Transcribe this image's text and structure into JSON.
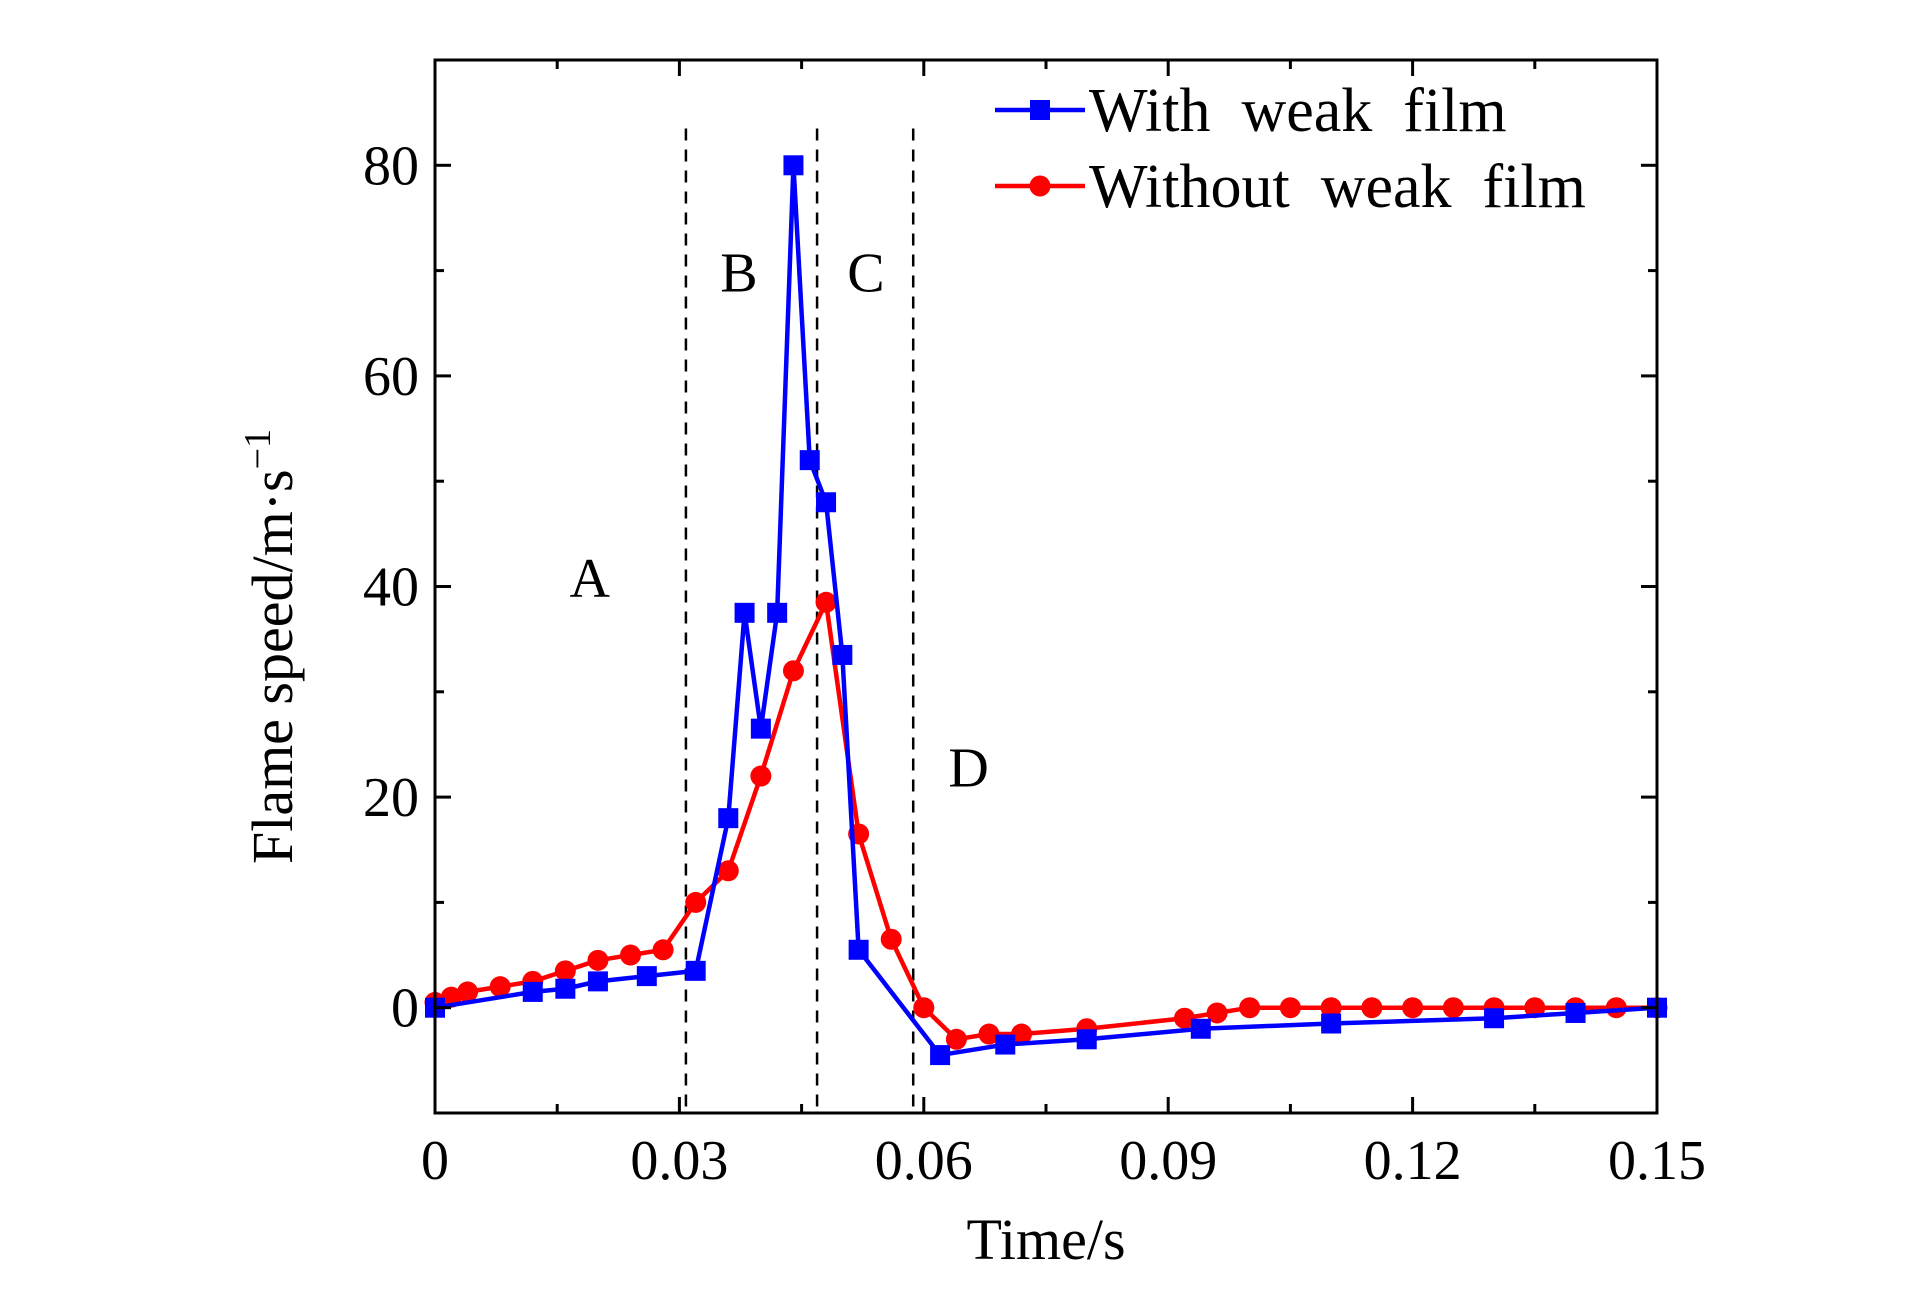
{
  "chart_data": {
    "type": "line",
    "title": "",
    "xlabel": "Time/s",
    "ylabel": "Flame speed/m·s",
    "ylabel_sup": "−1",
    "xlim": [
      0,
      0.15
    ],
    "ylim": [
      -10,
      90
    ],
    "xticks": [
      0,
      0.03,
      0.06,
      0.09,
      0.12,
      0.15
    ],
    "xtick_labels": [
      "0",
      "0.03",
      "0.06",
      "0.09",
      "0.12",
      "0.15"
    ],
    "yticks": [
      0,
      20,
      40,
      60,
      80
    ],
    "ytick_labels": [
      "0",
      "20",
      "40",
      "60",
      "80"
    ],
    "grid": false,
    "legend": "top-right",
    "regions": {
      "boundaries": [
        0.0308,
        0.0469,
        0.0587
      ],
      "labels": [
        {
          "text": "A",
          "x": 0.019,
          "y": 39
        },
        {
          "text": "B",
          "x": 0.0373,
          "y": 68
        },
        {
          "text": "C",
          "x": 0.0529,
          "y": 68
        },
        {
          "text": "D",
          "x": 0.0655,
          "y": 21
        }
      ]
    },
    "series": [
      {
        "name": "With  weak  film",
        "color": "#0000ff",
        "marker": "square",
        "x": [
          0,
          0.012,
          0.016,
          0.02,
          0.026,
          0.032,
          0.036,
          0.038,
          0.04,
          0.042,
          0.044,
          0.046,
          0.048,
          0.05,
          0.052,
          0.062,
          0.07,
          0.08,
          0.094,
          0.11,
          0.13,
          0.14,
          0.15
        ],
        "y": [
          0,
          1.5,
          1.8,
          2.5,
          3,
          3.5,
          18,
          37.5,
          26.5,
          37.5,
          80,
          52,
          48,
          33.5,
          5.5,
          -4.5,
          -3.5,
          -3,
          -2,
          -1.5,
          -1,
          -0.5,
          0
        ]
      },
      {
        "name": "Without  weak  film",
        "color": "#ff0000",
        "marker": "circle",
        "x": [
          0,
          0.002,
          0.004,
          0.008,
          0.012,
          0.016,
          0.02,
          0.024,
          0.028,
          0.032,
          0.036,
          0.04,
          0.044,
          0.048,
          0.052,
          0.056,
          0.06,
          0.064,
          0.068,
          0.072,
          0.08,
          0.092,
          0.096,
          0.1,
          0.105,
          0.11,
          0.115,
          0.12,
          0.125,
          0.13,
          0.135,
          0.14,
          0.145,
          0.15
        ],
        "y": [
          0.5,
          1,
          1.5,
          2,
          2.5,
          3.5,
          4.5,
          5,
          5.5,
          10,
          13,
          22,
          32,
          38.5,
          16.5,
          6.5,
          0,
          -3,
          -2.5,
          -2.5,
          -2,
          -1,
          -0.5,
          0,
          0,
          0,
          0,
          0,
          0,
          0,
          0,
          0,
          0,
          0
        ]
      }
    ]
  }
}
